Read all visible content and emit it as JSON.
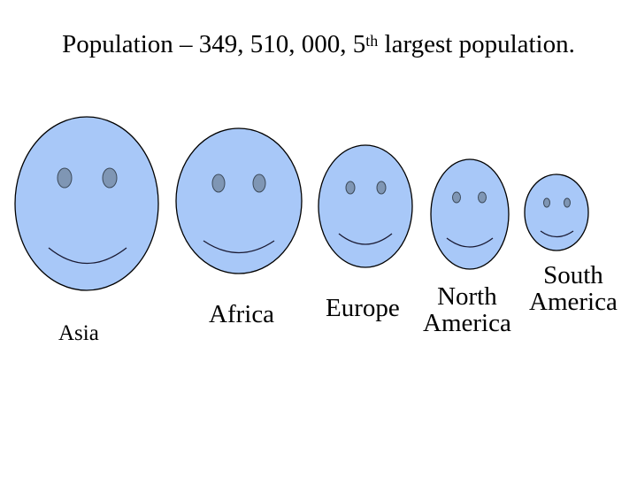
{
  "title": {
    "text_before_sup": "Population – 349, 510, 000, 5",
    "sup": "th",
    "text_after_sup": " largest population."
  },
  "colors": {
    "face_fill": "#a8c8f8",
    "face_stroke": "#000000",
    "eye_fill": "#7f96b4",
    "eye_stroke": "#3c4a5a",
    "smile_stroke": "#1a1a33"
  },
  "faces": [
    {
      "id": "asia",
      "label": "Asia"
    },
    {
      "id": "africa",
      "label": "Africa"
    },
    {
      "id": "europe",
      "label": "Europe"
    },
    {
      "id": "north-america",
      "label_lines": [
        "North",
        "America"
      ]
    },
    {
      "id": "south-america",
      "label_lines": [
        "South",
        "America"
      ]
    }
  ]
}
